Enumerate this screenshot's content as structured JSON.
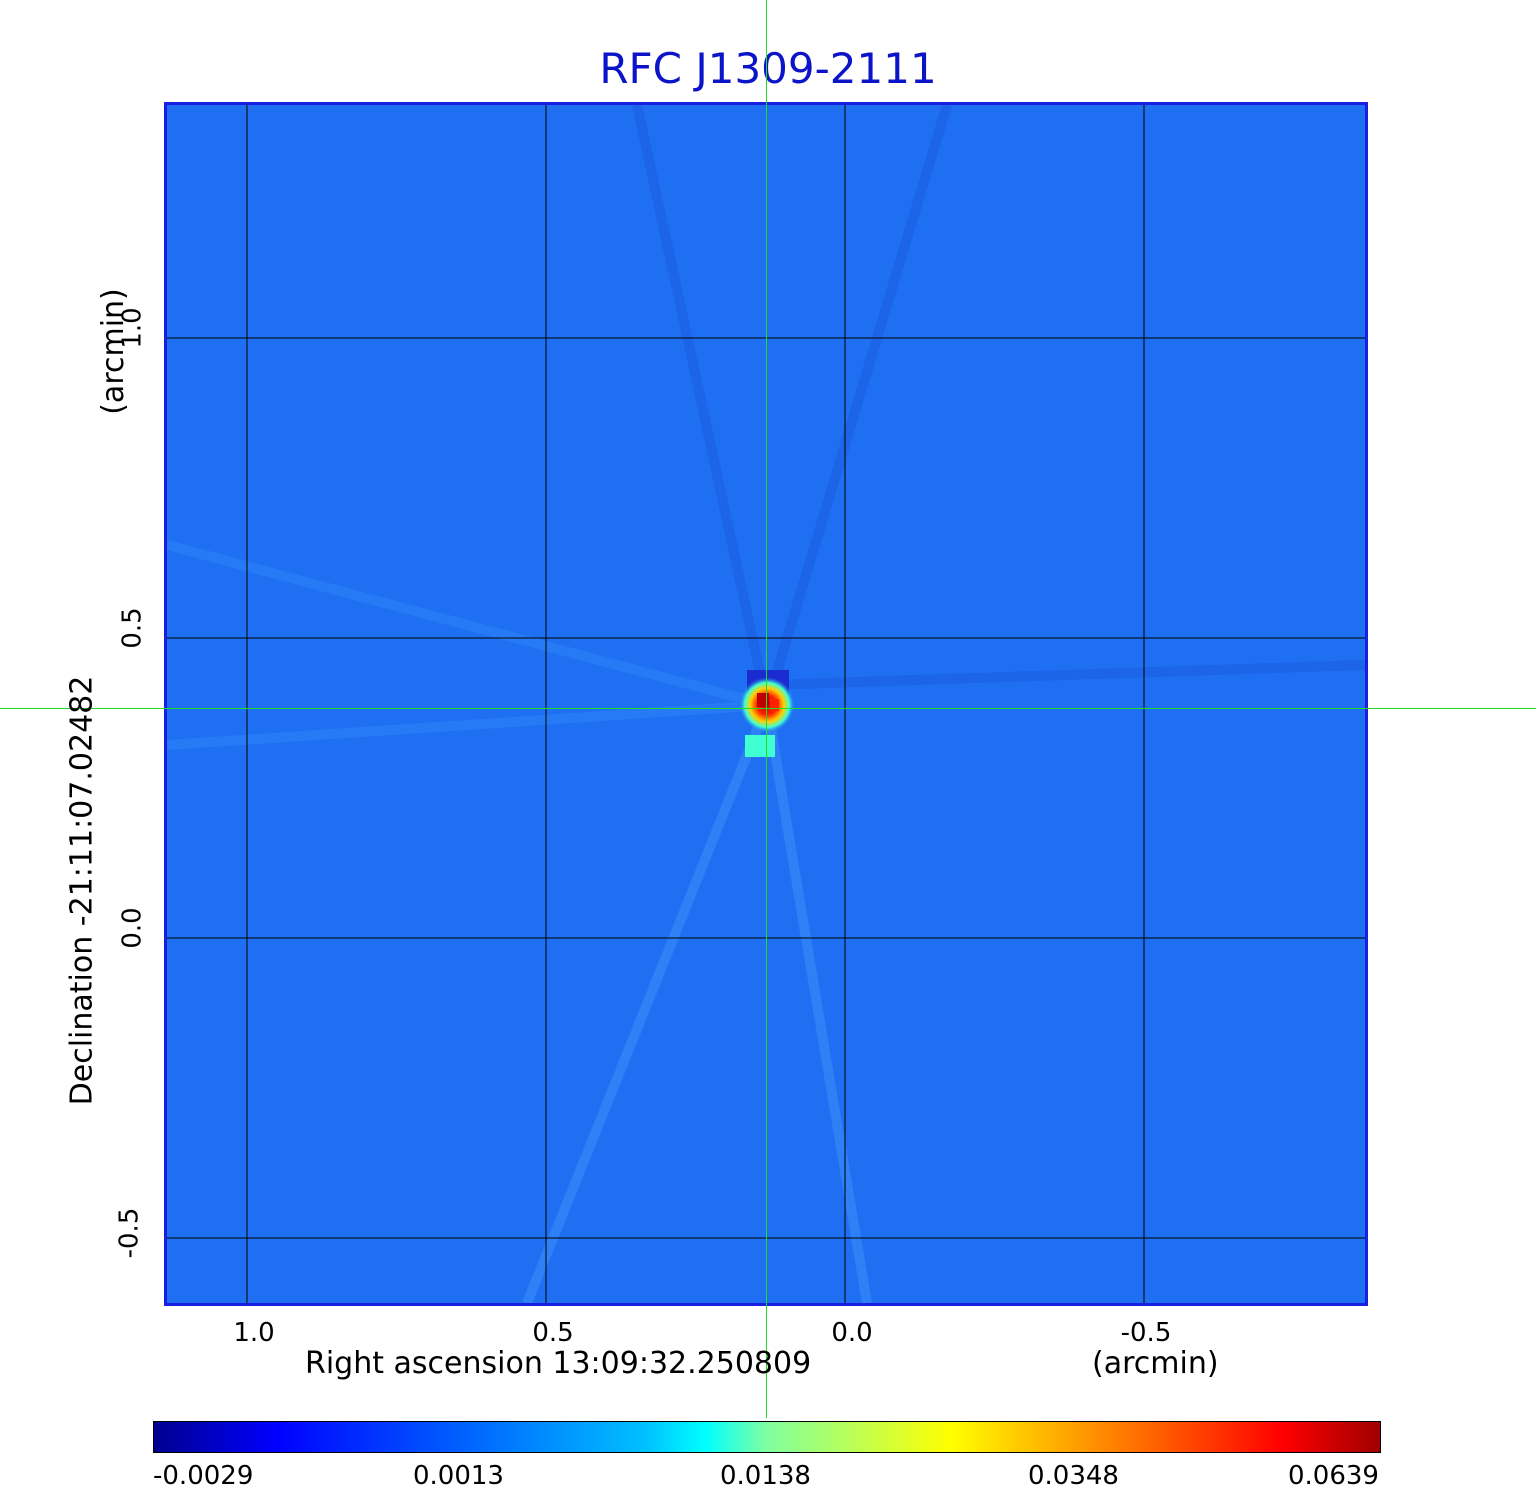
{
  "title": "RFC J1309-2111",
  "x_axis": {
    "label": "Right ascension  13:09:32.250809",
    "unit": "(arcmin)",
    "ticks": [
      "1.0",
      "0.5",
      "0.0",
      "-0.5"
    ]
  },
  "y_axis": {
    "label": "Declination  -21:11:07.02482",
    "unit": "(arcmin)",
    "ticks": [
      "1.0",
      "0.5",
      "0.0",
      "-0.5"
    ]
  },
  "colorbar": {
    "ticks": [
      "-0.0029",
      "0.0013",
      "0.0138",
      "0.0348",
      "0.0639"
    ]
  },
  "colors": {
    "background_map": "#1e6ff2",
    "title": "#0b14c8",
    "crosshair": "#22dd22",
    "frame": "#1a1ee0"
  }
}
